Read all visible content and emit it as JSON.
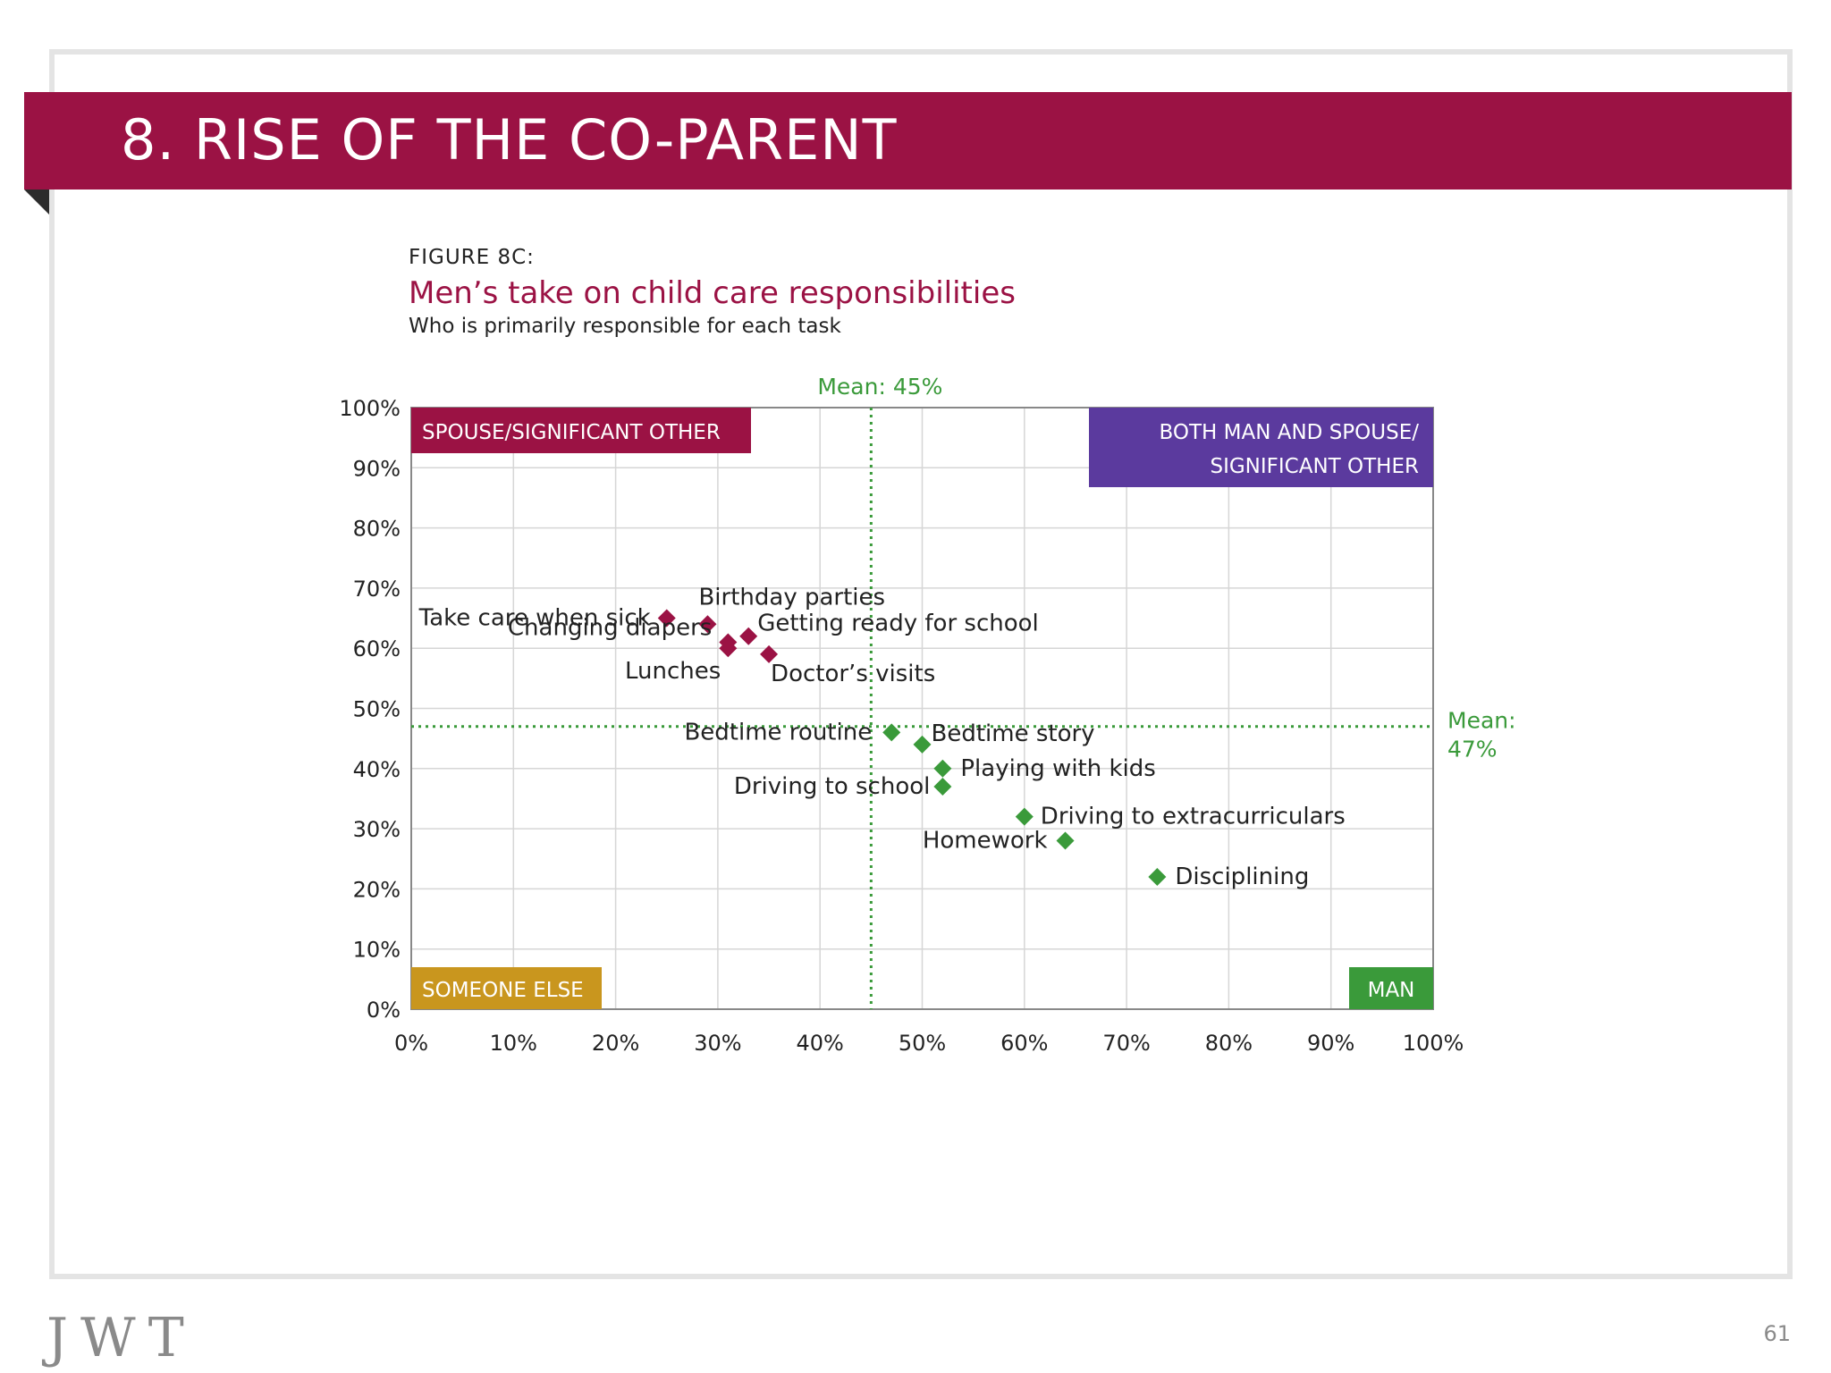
{
  "slide": {
    "title": "8. RISE OF THE CO-PARENT",
    "figure_label": "FIGURE 8C:",
    "figure_title": "Men’s take on child care responsibilities",
    "figure_subtitle": "Who is primarily responsible for each task",
    "logo": "JWT",
    "page_number": "61"
  },
  "colors": {
    "brand": "#9b1244",
    "spouse": "#9b1244",
    "man": "#3a9a3a",
    "both": "#5b3a9e",
    "someone_else": "#c9961e"
  },
  "chart_data": {
    "type": "scatter",
    "xlim": [
      0,
      100
    ],
    "ylim": [
      0,
      100
    ],
    "x_ticks": [
      "0%",
      "10%",
      "20%",
      "30%",
      "40%",
      "50%",
      "60%",
      "70%",
      "80%",
      "90%",
      "100%"
    ],
    "y_ticks": [
      "0%",
      "10%",
      "20%",
      "30%",
      "40%",
      "50%",
      "60%",
      "70%",
      "80%",
      "90%",
      "100%"
    ],
    "grid": true,
    "means": {
      "x": 45,
      "x_label": "Mean: 45%",
      "y": 47,
      "y_label_line1": "Mean:",
      "y_label_line2": "47%"
    },
    "quadrants": {
      "top_left": "SPOUSE/SIGNIFICANT OTHER",
      "top_right_line1": "BOTH MAN AND SPOUSE/",
      "top_right_line2": "SIGNIFICANT OTHER",
      "bottom_left": "SOMEONE ELSE",
      "bottom_right": "MAN"
    },
    "points": [
      {
        "label": "Take care when sick",
        "x": 25,
        "y": 65,
        "group": "spouse"
      },
      {
        "label": "Birthday parties",
        "x": 29,
        "y": 64,
        "group": "spouse"
      },
      {
        "label": "Changing diapers",
        "x": 31,
        "y": 61,
        "group": "spouse"
      },
      {
        "label": "Lunches",
        "x": 31,
        "y": 60,
        "group": "spouse"
      },
      {
        "label": "Getting ready for school",
        "x": 33,
        "y": 62,
        "group": "spouse"
      },
      {
        "label": "Doctor’s visits",
        "x": 35,
        "y": 59,
        "group": "spouse"
      },
      {
        "label": "Bedtime routine",
        "x": 47,
        "y": 46,
        "group": "man"
      },
      {
        "label": "Bedtime story",
        "x": 50,
        "y": 44,
        "group": "man"
      },
      {
        "label": "Playing with kids",
        "x": 52,
        "y": 40,
        "group": "man"
      },
      {
        "label": "Driving to school",
        "x": 52,
        "y": 37,
        "group": "man"
      },
      {
        "label": "Driving to extracurriculars",
        "x": 60,
        "y": 32,
        "group": "man"
      },
      {
        "label": "Homework",
        "x": 64,
        "y": 28,
        "group": "man"
      },
      {
        "label": "Disciplining",
        "x": 73,
        "y": 22,
        "group": "man"
      }
    ]
  }
}
